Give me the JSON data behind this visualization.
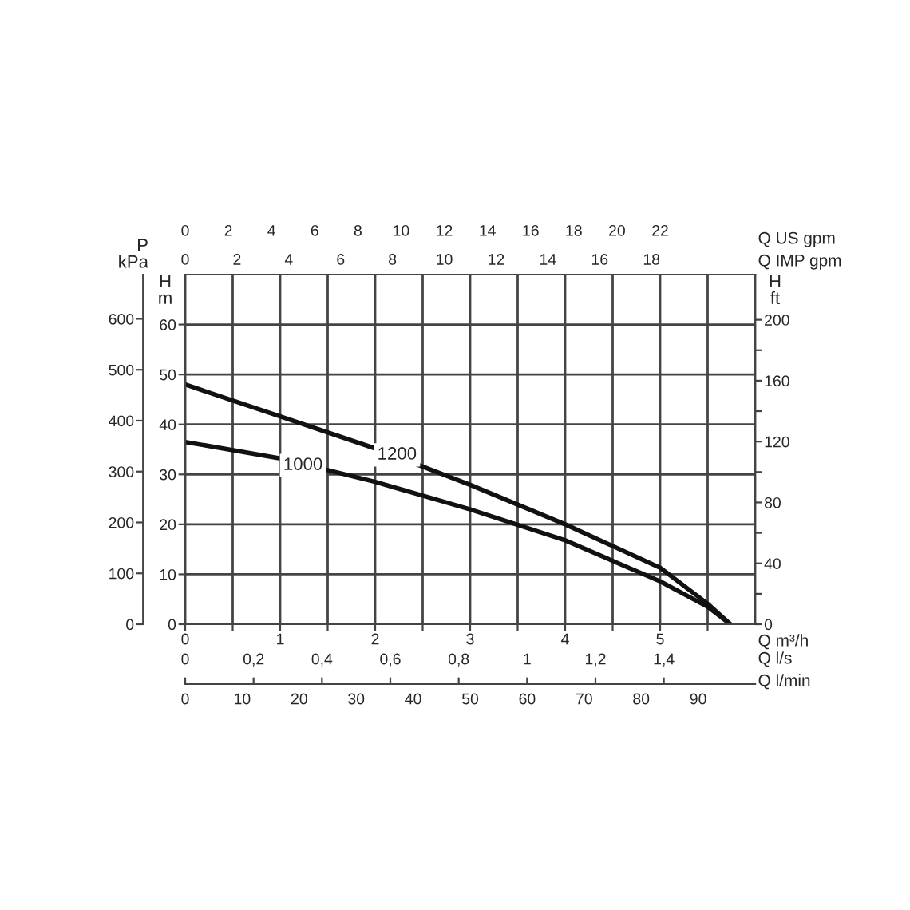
{
  "chart_data": [
    {
      "type": "line",
      "xlabel": "Q m³/h",
      "ylabel": "H\nm",
      "y2label": "H\nft",
      "y3label": "P\nkPa",
      "x2label": "Q US gpm",
      "xlim": [
        0,
        6
      ],
      "xticks": [
        0,
        {
          "value": 0.5,
          "label": null
        },
        1,
        {
          "value": 1.5,
          "label": null
        },
        2,
        {
          "value": 2.5,
          "label": null
        },
        3,
        {
          "value": 3.5,
          "label": null
        },
        4,
        {
          "value": 4.5,
          "label": null
        },
        5,
        {
          "value": 5.5,
          "label": null
        }
      ],
      "ylim": [
        0,
        70
      ],
      "yticks": [
        0,
        10,
        20,
        30,
        40,
        50,
        60
      ],
      "y2lim": [
        0,
        229.7
      ],
      "y2ticks": [
        0,
        {
          "value": 20,
          "label": null
        },
        40,
        {
          "value": 60,
          "label": null
        },
        80,
        {
          "value": 100,
          "label": null
        },
        120,
        {
          "value": 140,
          "label": null
        },
        160,
        {
          "value": 180,
          "label": null
        },
        200
      ],
      "y3lim": [
        0,
        687
      ],
      "y3ticks": [
        0,
        100,
        200,
        300,
        400,
        500,
        600
      ],
      "x2lim": [
        0,
        26.4
      ],
      "x2ticks": [
        0,
        2,
        4,
        6,
        8,
        10,
        12,
        14,
        16,
        18,
        20,
        22
      ],
      "series": [
        {
          "color": "#111111",
          "x": [
            0,
            1,
            2,
            3,
            4,
            5,
            5.5,
            5.74
          ],
          "values": [
            48,
            41.6,
            35.2,
            27.9,
            20.0,
            11.3,
            4.1,
            0
          ]
        },
        {
          "color": "#111111",
          "x": [
            0,
            1,
            2,
            3,
            4,
            5,
            5.5,
            5.74
          ],
          "values": [
            36.5,
            33.2,
            28.5,
            23.0,
            16.8,
            8.6,
            3.5,
            0
          ]
        }
      ],
      "annotations": [
        {
          "text": "1200",
          "x": 2.23,
          "y": 33.9
        },
        {
          "text": "1000",
          "x": 1.24,
          "y": 31.8
        }
      ],
      "grid": true,
      "legend": false,
      "line_style": "solid"
    },
    {
      "type": "line",
      "xlabel": "Q l/s",
      "x2label": "Q IMP gpm",
      "tick_labels": "x",
      "ylim": [
        0,
        70
      ],
      "xlim": [
        0,
        1.667
      ],
      "xticks": [
        0,
        {
          "value": 0.2,
          "label": "0,2"
        },
        {
          "value": 0.4,
          "label": "0,4"
        },
        {
          "value": 0.6,
          "label": "0,6"
        },
        {
          "value": 0.8,
          "label": "0,8"
        },
        1,
        {
          "value": 1.2,
          "label": "1,2"
        },
        {
          "value": 1.4,
          "label": "1,4"
        }
      ],
      "x2lim": [
        0,
        22
      ],
      "x2ticks": [
        0,
        2,
        4,
        6,
        8,
        10,
        12,
        14,
        16,
        18
      ]
    },
    {
      "type": "line",
      "xlabel": "Q l/min",
      "tick_labels": "x",
      "ylim": [
        0,
        70
      ],
      "xlim": [
        0,
        100
      ],
      "xticks": [
        0,
        10,
        20,
        30,
        40,
        50,
        60,
        70,
        80,
        90
      ]
    }
  ]
}
